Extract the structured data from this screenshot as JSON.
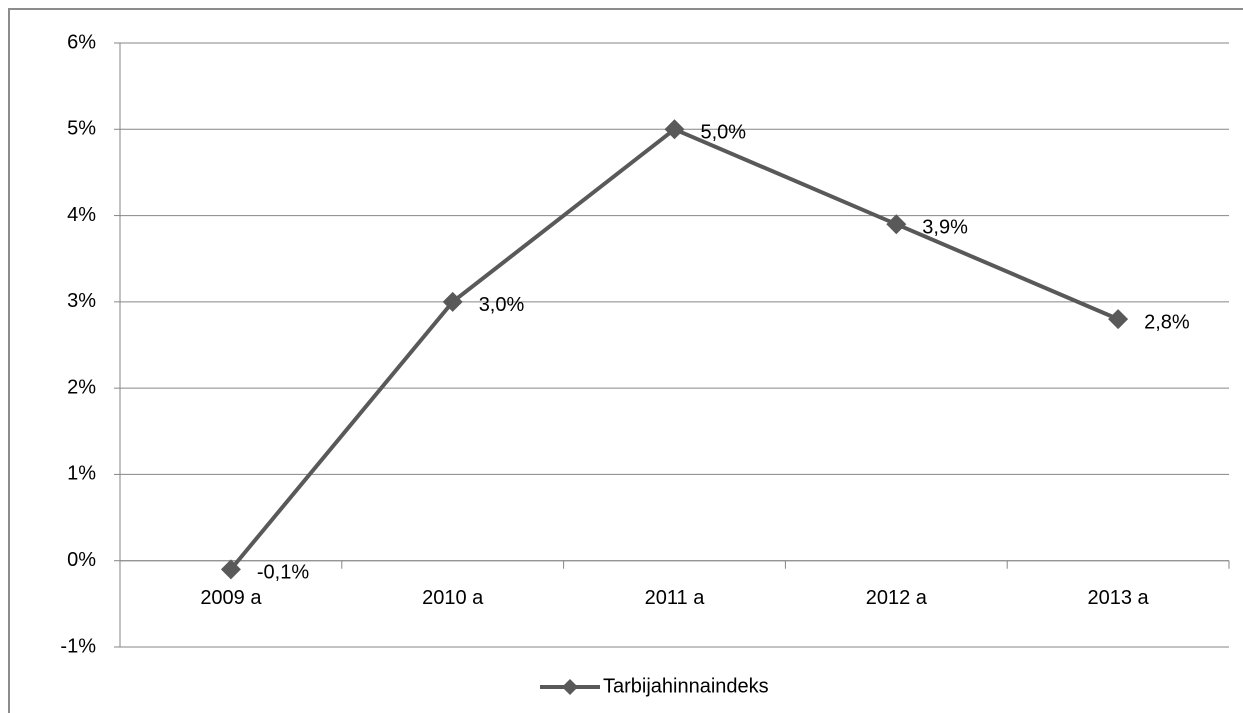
{
  "chart_data": {
    "type": "line",
    "categories": [
      "2009 a",
      "2010 a",
      "2011 a",
      "2012 a",
      "2013 a"
    ],
    "series": [
      {
        "name": "Tarbijahinnaindeks",
        "color": "#595959",
        "values": [
          -0.1,
          3.0,
          5.0,
          3.9,
          2.8
        ],
        "value_labels": [
          "-0,1%",
          "3,0%",
          "5,0%",
          "3,9%",
          "2,8%"
        ]
      }
    ],
    "ylim": [
      -1,
      6
    ],
    "yticks": [
      {
        "value": -1,
        "label": "-1%"
      },
      {
        "value": 0,
        "label": "0%"
      },
      {
        "value": 1,
        "label": "1%"
      },
      {
        "value": 2,
        "label": "2%"
      },
      {
        "value": 3,
        "label": "3%"
      },
      {
        "value": 4,
        "label": "4%"
      },
      {
        "value": 5,
        "label": "5%"
      },
      {
        "value": 6,
        "label": "6%"
      }
    ],
    "grid": true,
    "legend": "bottom"
  }
}
